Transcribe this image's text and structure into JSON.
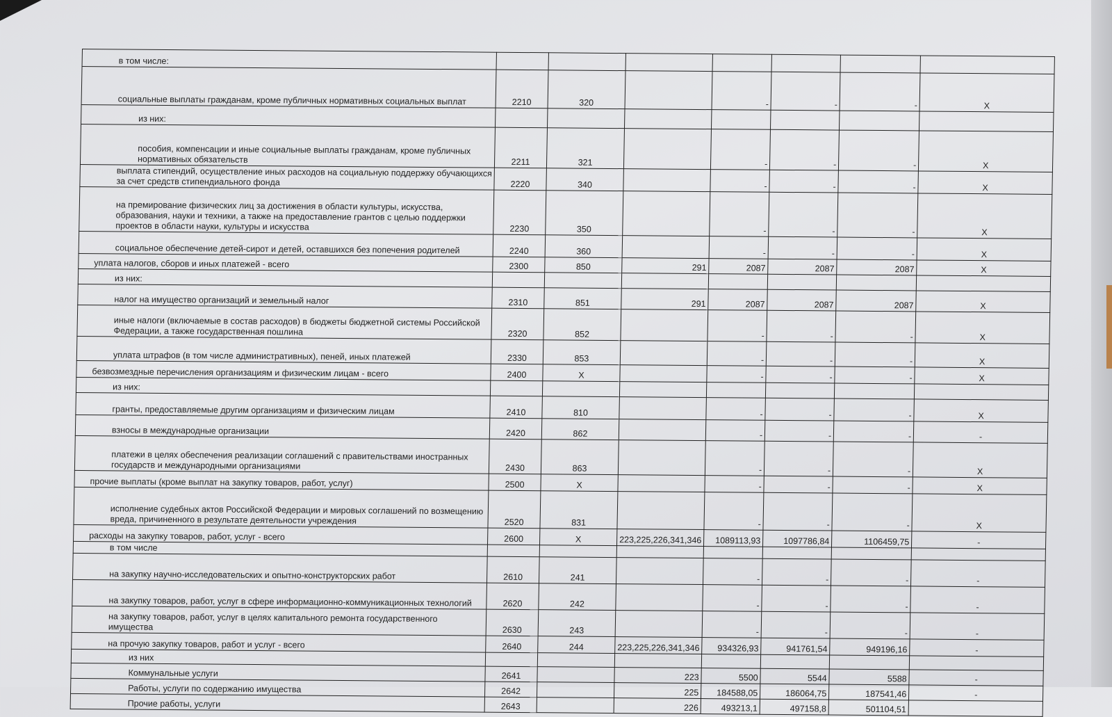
{
  "rows": [
    {
      "name": "в том числе:",
      "indent": 1,
      "h": 25
    },
    {
      "name": "социальные выплаты гражданам, кроме публичных нормативных социальных выплат",
      "code": "2210",
      "kbk": "320",
      "c4": "",
      "c5": "-",
      "c6": "-",
      "c7": "-",
      "c8": "X",
      "indent": 1,
      "h": 55
    },
    {
      "name": "из них:",
      "indent": 2,
      "h": 28
    },
    {
      "name": "пособия, компенсации и иные социальные выплаты гражданам, кроме публичных нормативных обязательств",
      "code": "2211",
      "kbk": "321",
      "c4": "",
      "c5": "-",
      "c6": "-",
      "c7": "-",
      "c8": "X",
      "indent": 2,
      "h": 58
    },
    {
      "name": "выплата стипендий, осуществление иных расходов на социальную поддержку обучающихся за счет средств стипендиального фонда",
      "code": "2220",
      "kbk": "340",
      "c4": "",
      "c5": "-",
      "c6": "-",
      "c7": "-",
      "c8": "X",
      "indent": 1,
      "h": 32
    },
    {
      "name": "на премирование физических лиц за достижения в области культуры, искусства, образования, науки и техники, а также на предоставление грантов с целью поддержки проектов в области науки, культуры и искусства",
      "code": "2230",
      "kbk": "350",
      "c4": "",
      "c5": "-",
      "c6": "-",
      "c7": "-",
      "c8": "X",
      "indent": 1,
      "h": 64
    },
    {
      "name": "социальное обеспечение детей-сирот и детей, оставшихся без попечения родителей",
      "code": "2240",
      "kbk": "360",
      "c4": "",
      "c5": "-",
      "c6": "-",
      "c7": "-",
      "c8": "X",
      "indent": 1,
      "h": 32
    },
    {
      "name": "уплата налогов, сборов и иных платежей - всего",
      "code": "2300",
      "kbk": "850",
      "c4": "291",
      "c5": "2087",
      "c6": "2087",
      "c7": "2087",
      "c8": "X",
      "indent": 0,
      "h": 22
    },
    {
      "name": "из них:",
      "indent": 1,
      "h": 22
    },
    {
      "name": "налог на имущество организаций и земельный налог",
      "code": "2310",
      "kbk": "851",
      "c4": "291",
      "c5": "2087",
      "c6": "2087",
      "c7": "2087",
      "c8": "X",
      "indent": 1,
      "h": 30
    },
    {
      "name": "иные налоги (включаемые в состав расходов) в бюджеты бюджетной системы Российской Федерации, а также государственная пошлина",
      "code": "2320",
      "kbk": "852",
      "c4": "",
      "c5": "-",
      "c6": "-",
      "c7": "-",
      "c8": "X",
      "indent": 1,
      "h": 45
    },
    {
      "name": "уплата штрафов (в том числе административных), пеней, иных платежей",
      "code": "2330",
      "kbk": "853",
      "c4": "",
      "c5": "-",
      "c6": "-",
      "c7": "-",
      "c8": "X",
      "indent": 1,
      "h": 35
    },
    {
      "name": "безвозмездные перечисления организациям и физическим лицам - всего",
      "code": "2400",
      "kbk": "X",
      "c4": "",
      "c5": "-",
      "c6": "-",
      "c7": "-",
      "c8": "X",
      "indent": 0,
      "h": 24
    },
    {
      "name": "из них:",
      "indent": 1,
      "h": 22
    },
    {
      "name": "гранты, предоставляемые другим организациям и физическим лицам",
      "code": "2410",
      "kbk": "810",
      "c4": "",
      "c5": "-",
      "c6": "-",
      "c7": "-",
      "c8": "X",
      "indent": 1,
      "h": 32
    },
    {
      "name": "взносы в международные организации",
      "code": "2420",
      "kbk": "862",
      "c4": "",
      "c5": "-",
      "c6": "-",
      "c7": "-",
      "c8": "-",
      "indent": 1,
      "h": 30
    },
    {
      "name": "платежи в целях обеспечения реализации соглашений с правительствами иностранных государств и международными организациями",
      "code": "2430",
      "kbk": "863",
      "c4": "",
      "c5": "-",
      "c6": "-",
      "c7": "-",
      "c8": "X",
      "indent": 1,
      "h": 50
    },
    {
      "name": "прочие выплаты (кроме выплат на закупку товаров, работ, услуг)",
      "code": "2500",
      "kbk": "X",
      "c4": "",
      "c5": "-",
      "c6": "-",
      "c7": "-",
      "c8": "X",
      "indent": 0,
      "h": 24
    },
    {
      "name": "исполнение судебных актов Российской Федерации и мировых соглашений по возмещению вреда, причиненного в результате деятельности учреждения",
      "code": "2520",
      "kbk": "831",
      "c4": "",
      "c5": "-",
      "c6": "-",
      "c7": "-",
      "c8": "X",
      "indent": 1,
      "h": 54
    },
    {
      "name": "расходы на закупку товаров, работ, услуг - всего",
      "code": "2600",
      "kbk": "X",
      "c4": "223,225,226,341,346",
      "c5": "1089113,93",
      "c6": "1097786,84",
      "c7": "1106459,75",
      "c8": "-",
      "indent": 0,
      "h": 24
    },
    {
      "name": "в том числе",
      "indent": 1,
      "h": 17
    },
    {
      "name": "на закупку научно-исследовательских и опытно-конструкторских работ",
      "code": "2610",
      "kbk": "241",
      "c4": "",
      "c5": "-",
      "c6": "-",
      "c7": "-",
      "c8": "-",
      "indent": 1,
      "h": 38
    },
    {
      "name": "на закупку товаров, работ, услуг в сфере информационно-коммуникационных технологий",
      "code": "2620",
      "kbk": "242",
      "c4": "",
      "c5": "-",
      "c6": "-",
      "c7": "-",
      "c8": "-",
      "indent": 1,
      "h": 38
    },
    {
      "name": "на закупку товаров, работ, услуг в целях капитального ремонта государственного имущества",
      "code": "2630",
      "kbk": "243",
      "c4": "",
      "c5": "-",
      "c6": "-",
      "c7": "-",
      "c8": "-",
      "indent": 1,
      "h": 38
    },
    {
      "name": "на прочую закупку товаров, работ и услуг - всего",
      "code": "2640",
      "kbk": "244",
      "c4": "223,225,226,341,346",
      "c5": "934326,93",
      "c6": "941761,54",
      "c7": "949196,16",
      "c8": "-",
      "indent": 1,
      "h": 24
    },
    {
      "name": "из них",
      "indent": 2,
      "h": 20
    },
    {
      "name": "Коммунальные услуги",
      "code": "2641",
      "kbk": "",
      "c4": "223",
      "c5": "5500",
      "c6": "5544",
      "c7": "5588",
      "c8": "-",
      "indent": 2,
      "h": 22
    },
    {
      "name": "Работы, услуги по содержанию имущества",
      "code": "2642",
      "kbk": "",
      "c4": "225",
      "c5": "184588,05",
      "c6": "186064,75",
      "c7": "187541,46",
      "c8": "-",
      "indent": 2,
      "h": 22
    },
    {
      "name": "Прочие работы, услуги",
      "code": "2643",
      "kbk": "",
      "c4": "226",
      "c5": "493213,1",
      "c6": "497158,8",
      "c7": "501104,51",
      "c8": "",
      "indent": 2,
      "h": 22
    }
  ]
}
